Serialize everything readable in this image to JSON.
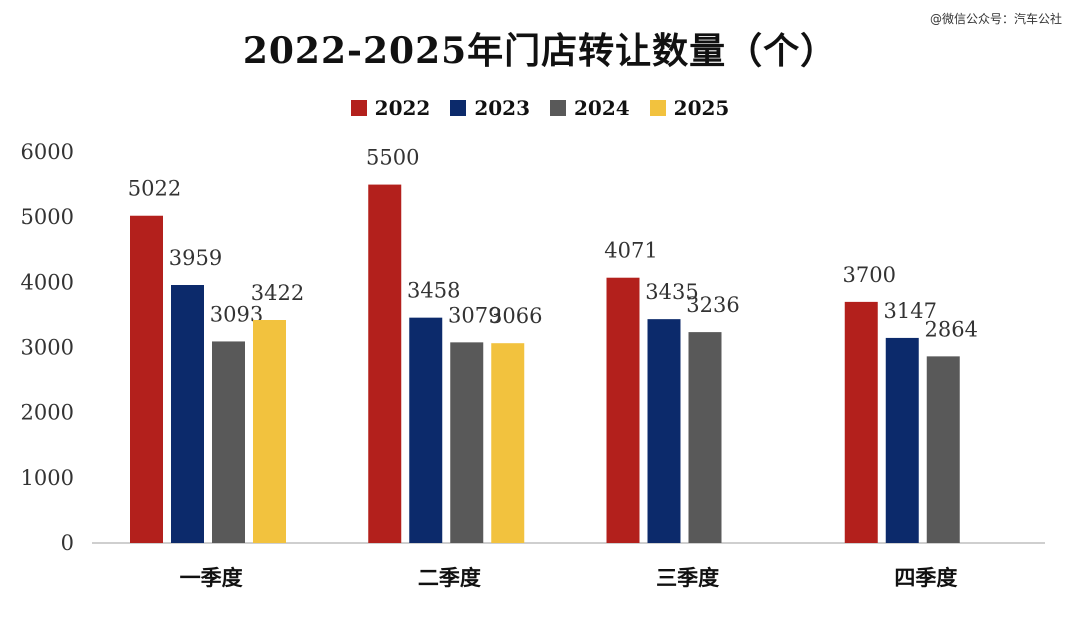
{
  "watermark": "@微信公众号：汽车公社",
  "chart_data": {
    "type": "bar",
    "title": "2022-2025年门店转让数量（个）",
    "xlabel": "",
    "ylabel": "",
    "ylim": [
      0,
      6000
    ],
    "yticks": [
      "0",
      "1000",
      "2000",
      "3000",
      "4000",
      "5000",
      "6000"
    ],
    "ytick_values": [
      0,
      1000,
      2000,
      3000,
      4000,
      5000,
      6000
    ],
    "grid": false,
    "legend_position": "top-center",
    "categories": [
      "一季度",
      "二季度",
      "三季度",
      "四季度"
    ],
    "series": [
      {
        "name": "2022",
        "color": "#b3201c",
        "values": [
          5022,
          5500,
          4071,
          3700
        ]
      },
      {
        "name": "2023",
        "color": "#0c2a6b",
        "values": [
          3959,
          3458,
          3435,
          3147
        ]
      },
      {
        "name": "2024",
        "color": "#595959",
        "values": [
          3093,
          3079,
          3236,
          2864
        ]
      },
      {
        "name": "2025",
        "color": "#f2c23e",
        "values": [
          3422,
          3066,
          null,
          null
        ]
      }
    ]
  }
}
